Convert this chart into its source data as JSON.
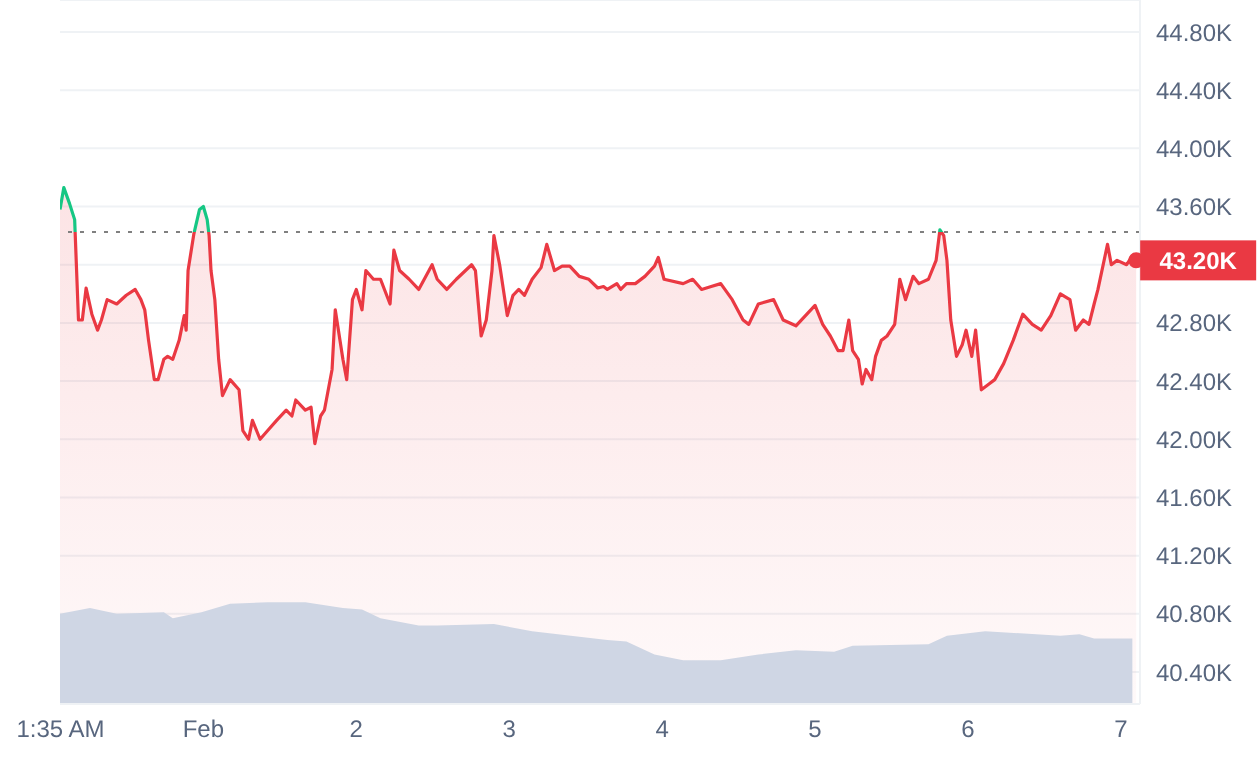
{
  "chart_data": {
    "type": "area",
    "grid": "y",
    "xlim": [
      "--01-31T01:30",
      "--02-07T03:00"
    ],
    "xticks": [
      {
        "value": "--01-31T01:35",
        "label": "1:35 AM"
      },
      {
        "value": "--02-01",
        "label": "Feb"
      },
      {
        "value": "--02-02",
        "label": "2"
      },
      {
        "value": "--02-03",
        "label": "3"
      },
      {
        "value": "--02-04",
        "label": "4"
      },
      {
        "value": "--02-05",
        "label": "5"
      },
      {
        "value": "--02-06",
        "label": "6"
      },
      {
        "value": "--02-07",
        "label": "7"
      }
    ],
    "ylim": [
      40180,
      45020
    ],
    "yticks": [
      {
        "value": 40400,
        "label": "40.40K"
      },
      {
        "value": 40800,
        "label": "40.80K"
      },
      {
        "value": 41200,
        "label": "41.20K"
      },
      {
        "value": 41600,
        "label": "41.60K"
      },
      {
        "value": 42000,
        "label": "42.00K"
      },
      {
        "value": 42400,
        "label": "42.40K"
      },
      {
        "value": 42800,
        "label": "42.80K"
      },
      {
        "value": 43200,
        "label": null
      },
      {
        "value": 43600,
        "label": "43.60K"
      },
      {
        "value": 44000,
        "label": "44.00K"
      },
      {
        "value": 44400,
        "label": "44.40K"
      },
      {
        "value": 44800,
        "label": "44.80K"
      }
    ],
    "ref_lines": [
      {
        "axis": "y",
        "value": 43425,
        "color": "#808080",
        "line_style": "dotted"
      }
    ],
    "annotations": [
      {
        "text": "43.20K",
        "x": "--02-07T02:24",
        "y": 43230
      }
    ],
    "series": [
      {
        "color": "#cfd6e4",
        "x": [
          "--01-31T01:30",
          "--01-31T06:12",
          "--01-31T10:24",
          "--01-31T17:48",
          "--01-31T19:12",
          "--01-31T23:42",
          "--02-01T04:12",
          "--02-01T10:06",
          "--02-01T16:00",
          "--02-01T21:54",
          "--02-02T00:54",
          "--02-02T03:48",
          "--02-02T09:48",
          "--02-02T12:42",
          "--02-02T21:36",
          "--02-03T03:36",
          "--02-03T15:24",
          "--02-03T18:24",
          "--02-03T22:48",
          "--02-04T03:18",
          "--02-04T09:12",
          "--02-04T15:06",
          "--02-04T21:00",
          "--02-05T03:00",
          "--02-05T05:54",
          "--02-05T17:48",
          "--02-05T20:42",
          "--02-06T02:42",
          "--02-06T14:30",
          "--02-06T17:30",
          "--02-06T19:48",
          "--02-07T01:48"
        ],
        "values": [
          40800,
          40840,
          40800,
          40810,
          40770,
          40810,
          40870,
          40880,
          40880,
          40840,
          40830,
          40770,
          40720,
          40720,
          40730,
          40680,
          40620,
          40610,
          40520,
          40480,
          40480,
          40520,
          40550,
          40540,
          40580,
          40590,
          40650,
          40680,
          40650,
          40660,
          40630,
          40630
        ]
      },
      {
        "color": "#ea3943",
        "x": [
          "--01-31T01:30",
          "--01-31T02:06",
          "--01-31T03:00",
          "--01-31T03:48",
          "--01-31T04:24",
          "--01-31T05:00",
          "--01-31T05:36",
          "--01-31T06:30",
          "--01-31T07:24",
          "--01-31T08:00",
          "--01-31T08:54",
          "--01-31T10:24",
          "--01-31T11:54",
          "--01-31T13:18",
          "--01-31T14:12",
          "--01-31T14:48",
          "--01-31T15:24",
          "--01-31T16:18",
          "--01-31T16:54",
          "--01-31T17:48",
          "--01-31T18:24",
          "--01-31T19:12",
          "--01-31T20:12",
          "--01-31T21:00",
          "--01-31T21:18",
          "--01-31T21:36",
          "--01-31T22:30",
          "--01-31T23:24",
          "--02-01T00:00",
          "--02-01T00:36",
          "--02-01T00:54",
          "--02-01T01:12",
          "--02-01T01:48",
          "--02-01T02:24",
          "--02-01T03:00",
          "--02-01T04:12",
          "--02-01T05:36",
          "--02-01T06:12",
          "--02-01T07:06",
          "--02-01T07:42",
          "--02-01T08:54",
          "--02-01T10:06",
          "--02-01T11:30",
          "--02-01T13:00",
          "--02-01T13:54",
          "--02-01T14:30",
          "--02-01T16:00",
          "--02-01T16:54",
          "--02-01T17:30",
          "--02-01T18:24",
          "--02-01T19:00",
          "--02-01T20:12",
          "--02-01T20:42",
          "--02-01T21:54",
          "--02-01T22:30",
          "--02-01T23:24",
          "--02-02T00:00",
          "--02-02T00:54",
          "--02-02T01:30",
          "--02-02T02:42",
          "--02-02T03:48",
          "--02-02T05:18",
          "--02-02T05:54",
          "--02-02T06:48",
          "--02-02T08:18",
          "--02-02T09:48",
          "--02-02T11:54",
          "--02-02T12:42",
          "--02-02T14:12",
          "--02-02T15:42",
          "--02-02T18:06",
          "--02-02T18:42",
          "--02-02T19:36",
          "--02-02T20:24",
          "--02-02T21:18",
          "--02-02T21:36",
          "--02-02T22:30",
          "--02-02T23:42",
          "--02-03T00:36",
          "--02-03T01:30",
          "--02-03T02:24",
          "--02-03T03:36",
          "--02-03T05:00",
          "--02-03T05:54",
          "--02-03T07:06",
          "--02-03T08:18",
          "--02-03T09:30",
          "--02-03T11:00",
          "--02-03T12:30",
          "--02-03T13:54",
          "--02-03T14:48",
          "--02-03T15:24",
          "--02-03T16:54",
          "--02-03T17:30",
          "--02-03T18:24",
          "--02-03T19:48",
          "--02-03T21:18",
          "--02-03T22:48",
          "--02-03T23:24",
          "--02-04T00:18",
          "--02-04T03:18",
          "--02-04T04:48",
          "--02-04T06:12",
          "--02-04T07:42",
          "--02-04T09:12",
          "--02-04T11:00",
          "--02-04T12:42",
          "--02-04T13:36",
          "--02-04T15:06",
          "--02-04T17:30",
          "--02-04T19:00",
          "--02-04T21:00",
          "--02-04T22:30",
          "--02-05T00:00",
          "--02-05T01:12",
          "--02-05T02:24",
          "--02-05T03:36",
          "--02-05T04:24",
          "--02-05T05:18",
          "--02-05T05:54",
          "--02-05T06:48",
          "--02-05T07:24",
          "--02-05T08:00",
          "--02-05T08:54",
          "--02-05T09:30",
          "--02-05T10:24",
          "--02-05T11:18",
          "--02-05T12:30",
          "--02-05T13:18",
          "--02-05T14:12",
          "--02-05T15:24",
          "--02-05T16:18",
          "--02-05T17:48",
          "--02-05T19:00",
          "--02-05T19:36",
          "--02-05T20:12",
          "--02-05T20:42",
          "--02-05T21:18",
          "--02-05T22:12",
          "--02-05T23:06",
          "--02-05T23:42",
          "--02-06T00:36",
          "--02-06T01:12",
          "--02-06T02:06",
          "--02-06T03:18",
          "--02-06T04:12",
          "--02-06T05:36",
          "--02-06T07:06",
          "--02-06T08:36",
          "--02-06T10:06",
          "--02-06T11:30",
          "--02-06T13:00",
          "--02-06T14:30",
          "--02-06T16:00",
          "--02-06T16:54",
          "--02-06T18:06",
          "--02-06T19:00",
          "--02-06T19:48",
          "--02-06T20:24",
          "--02-06T21:54",
          "--02-06T22:30",
          "--02-06T23:24",
          "--02-07T00:54",
          "--02-07T01:48",
          "--02-07T02:24"
        ],
        "values": [
          43580,
          43730,
          43620,
          43510,
          42820,
          42820,
          43040,
          42860,
          42750,
          42820,
          42960,
          42930,
          42990,
          43030,
          42960,
          42890,
          42680,
          42410,
          42410,
          42550,
          42570,
          42550,
          42680,
          42850,
          42750,
          43160,
          43410,
          43580,
          43600,
          43510,
          43400,
          43160,
          42960,
          42550,
          42300,
          42410,
          42340,
          42060,
          42000,
          42130,
          42000,
          42060,
          42130,
          42200,
          42160,
          42270,
          42200,
          42220,
          41970,
          42160,
          42200,
          42480,
          42890,
          42550,
          42410,
          42960,
          43030,
          42890,
          43160,
          43100,
          43100,
          42930,
          43300,
          43160,
          43100,
          43030,
          43200,
          43100,
          43030,
          43100,
          43200,
          43160,
          42710,
          42820,
          43160,
          43400,
          43200,
          42850,
          42990,
          43030,
          42990,
          43100,
          43180,
          43340,
          43160,
          43190,
          43190,
          43120,
          43100,
          43040,
          43050,
          43030,
          43070,
          43030,
          43070,
          43070,
          43120,
          43190,
          43250,
          43100,
          43070,
          43100,
          43030,
          43050,
          43070,
          42960,
          42820,
          42790,
          42930,
          42960,
          42820,
          42780,
          42850,
          42920,
          42790,
          42710,
          42610,
          42610,
          42820,
          42610,
          42550,
          42380,
          42480,
          42410,
          42570,
          42680,
          42710,
          42790,
          43100,
          42960,
          43120,
          43070,
          43100,
          43230,
          43440,
          43400,
          43230,
          42820,
          42570,
          42650,
          42750,
          42570,
          42750,
          42340,
          42380,
          42410,
          42520,
          42680,
          42860,
          42790,
          42750,
          42850,
          43000,
          42960,
          42750,
          42820,
          42790,
          42930,
          43030,
          43340,
          43200,
          43230,
          43200,
          43260,
          43230
        ]
      }
    ]
  }
}
